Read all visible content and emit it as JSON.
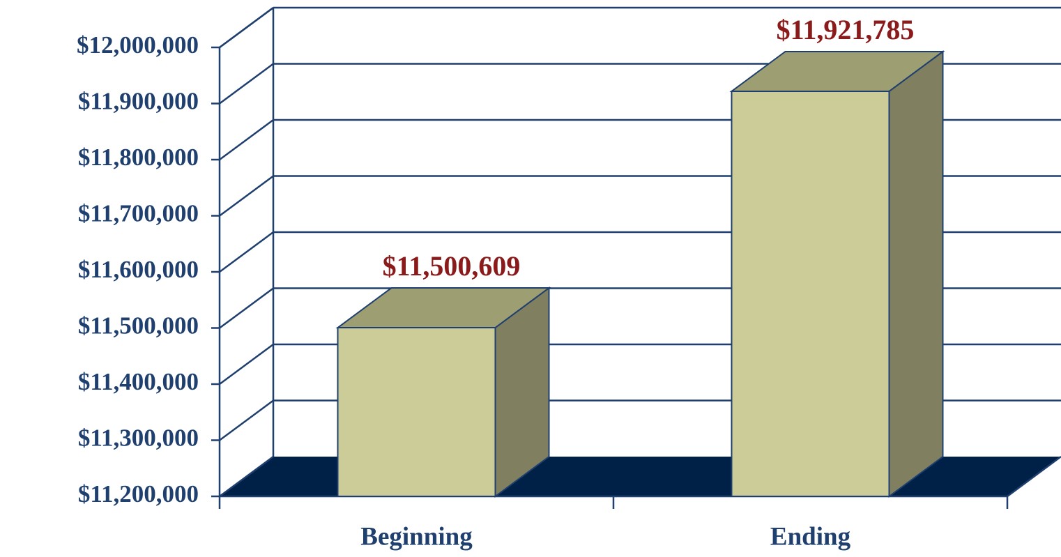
{
  "chart_data": {
    "type": "bar",
    "categories": [
      "Beginning",
      "Ending"
    ],
    "values": [
      11500609,
      11921785
    ],
    "value_labels": [
      "$11,500,609",
      "$11,921,785"
    ],
    "color": "#cccc99",
    "ylim": [
      11200000,
      12000000
    ],
    "yticks": [
      {
        "value": 11200000,
        "label": "$11,200,000"
      },
      {
        "value": 11300000,
        "label": "$11,300,000"
      },
      {
        "value": 11400000,
        "label": "$11,400,000"
      },
      {
        "value": 11500000,
        "label": "$11,500,000"
      },
      {
        "value": 11600000,
        "label": "$11,600,000"
      },
      {
        "value": 11700000,
        "label": "$11,700,000"
      },
      {
        "value": 11800000,
        "label": "$11,800,000"
      },
      {
        "value": 11900000,
        "label": "$11,900,000"
      },
      {
        "value": 12000000,
        "label": "$12,000,000"
      }
    ],
    "grid": true
  }
}
